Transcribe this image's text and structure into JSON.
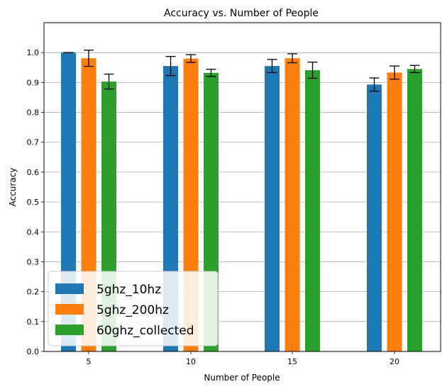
{
  "chart_data": {
    "type": "bar",
    "title": "Accuracy vs. Number of People",
    "xlabel": "Number of People",
    "ylabel": "Accuracy",
    "categories": [
      "5",
      "10",
      "15",
      "20"
    ],
    "ylim": [
      0,
      1.1
    ],
    "yticks": [
      "0.0",
      "0.1",
      "0.2",
      "0.3",
      "0.4",
      "0.5",
      "0.6",
      "0.7",
      "0.8",
      "0.9",
      "1.0"
    ],
    "grid": "y",
    "legend_position": "lower-left",
    "series": [
      {
        "name": "5ghz_10hz",
        "color": "#1f77b4",
        "values": [
          1.0,
          0.955,
          0.955,
          0.893
        ],
        "errors": [
          0.0,
          0.032,
          0.022,
          0.022
        ]
      },
      {
        "name": "5ghz_200hz",
        "color": "#ff7f0e",
        "values": [
          0.981,
          0.98,
          0.981,
          0.933
        ],
        "errors": [
          0.027,
          0.013,
          0.015,
          0.022
        ]
      },
      {
        "name": "60ghz_collected",
        "color": "#2ca02c",
        "values": [
          0.903,
          0.932,
          0.941,
          0.945
        ],
        "errors": [
          0.025,
          0.012,
          0.027,
          0.012
        ]
      }
    ]
  }
}
